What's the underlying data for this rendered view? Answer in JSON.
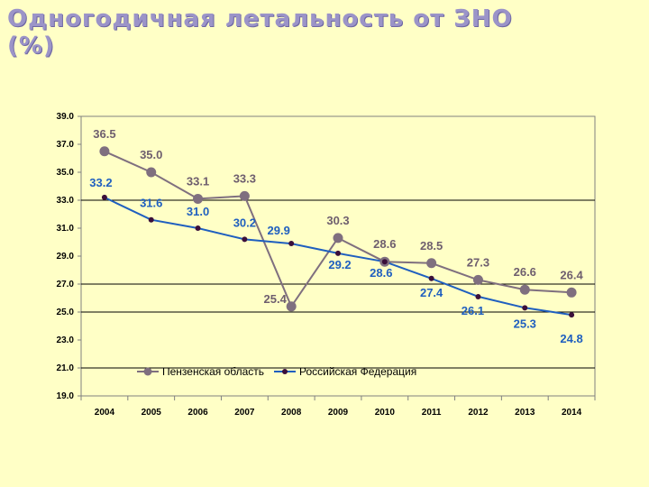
{
  "title_line1": "Одногодичная летальность от ЗНО",
  "title_line2": "(%)",
  "chart_data": {
    "type": "line",
    "title": "Одногодичная летальность от ЗНО (%)",
    "x": [
      "2004",
      "2005",
      "2006",
      "2007",
      "2008",
      "2009",
      "2010",
      "2011",
      "2012",
      "2013",
      "2014"
    ],
    "ylim": [
      19.0,
      39.0
    ],
    "yticks": [
      "19.0",
      "21.0",
      "23.0",
      "25.0",
      "27.0",
      "29.0",
      "31.0",
      "33.0",
      "35.0",
      "37.0",
      "39.0"
    ],
    "ytick_values": [
      19,
      21,
      23,
      25,
      27,
      29,
      31,
      33,
      35,
      37,
      39
    ],
    "grid_values": [
      21,
      25,
      27,
      33
    ],
    "legend_position": "bottom-center",
    "series": [
      {
        "name": "Пензенская область",
        "color": "#7f6f7f",
        "label_color": "#6e5e6e",
        "values": [
          36.5,
          35.0,
          33.1,
          33.3,
          25.4,
          30.3,
          28.6,
          28.5,
          27.3,
          26.6,
          26.4
        ],
        "labels": [
          "36.5",
          "35.0",
          "33.1",
          "33.3",
          "25.4",
          "30.3",
          "28.6",
          "28.5",
          "27.3",
          "26.6",
          "26.4"
        ]
      },
      {
        "name": "Российская Федерация",
        "color": "#1f5fbf",
        "marker_color": "#3a0f3a",
        "label_color": "#1f5fbf",
        "values": [
          33.2,
          31.6,
          31.0,
          30.2,
          29.9,
          29.2,
          28.6,
          27.4,
          26.1,
          25.3,
          24.8
        ],
        "labels": [
          "33.2",
          "31.6",
          "31.0",
          "30.2",
          "29.9",
          "29.2",
          "28.6",
          "27.4",
          "26.1",
          "25.3",
          "24.8"
        ]
      }
    ]
  }
}
